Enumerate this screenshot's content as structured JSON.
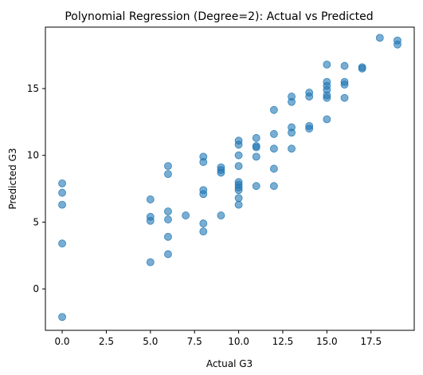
{
  "chart_data": {
    "type": "scatter",
    "title": "Polynomial Regression (Degree=2): Actual vs Predicted",
    "xlabel": "Actual G3",
    "ylabel": "Predicted G3",
    "xlim": [
      -0.95,
      19.95
    ],
    "ylim": [
      -3.1,
      19.6
    ],
    "xticks": [
      0.0,
      2.5,
      5.0,
      7.5,
      10.0,
      12.5,
      15.0,
      17.5
    ],
    "xtick_labels": [
      "0.0",
      "2.5",
      "5.0",
      "7.5",
      "10.0",
      "12.5",
      "15.0",
      "17.5"
    ],
    "yticks": [
      0,
      5,
      10,
      15
    ],
    "ytick_labels": [
      "0",
      "5",
      "10",
      "15"
    ],
    "grid": false,
    "marker_color": "#1f77b4",
    "marker_alpha": 0.6,
    "points": [
      [
        0,
        7.9
      ],
      [
        0,
        7.2
      ],
      [
        0,
        6.3
      ],
      [
        0,
        3.4
      ],
      [
        0,
        -2.1
      ],
      [
        5,
        6.7
      ],
      [
        5,
        5.4
      ],
      [
        5,
        5.1
      ],
      [
        5,
        2.0
      ],
      [
        6,
        9.2
      ],
      [
        6,
        8.6
      ],
      [
        6,
        5.8
      ],
      [
        6,
        5.2
      ],
      [
        6,
        3.9
      ],
      [
        6,
        2.6
      ],
      [
        7,
        5.5
      ],
      [
        8,
        9.9
      ],
      [
        8,
        9.5
      ],
      [
        8,
        7.4
      ],
      [
        8,
        7.1
      ],
      [
        8,
        4.9
      ],
      [
        8,
        4.3
      ],
      [
        9,
        9.1
      ],
      [
        9,
        8.9
      ],
      [
        9,
        8.7
      ],
      [
        9,
        5.5
      ],
      [
        10,
        11.1
      ],
      [
        10,
        10.8
      ],
      [
        10,
        10.0
      ],
      [
        10,
        9.2
      ],
      [
        10,
        8.0
      ],
      [
        10,
        7.8
      ],
      [
        10,
        7.6
      ],
      [
        10,
        7.4
      ],
      [
        10,
        6.8
      ],
      [
        10,
        6.3
      ],
      [
        11,
        11.3
      ],
      [
        11,
        10.7
      ],
      [
        11,
        10.6
      ],
      [
        11,
        9.9
      ],
      [
        11,
        7.7
      ],
      [
        12,
        13.4
      ],
      [
        12,
        11.6
      ],
      [
        12,
        10.5
      ],
      [
        12,
        9.0
      ],
      [
        12,
        7.7
      ],
      [
        13,
        14.4
      ],
      [
        13,
        14.0
      ],
      [
        13,
        12.1
      ],
      [
        13,
        11.7
      ],
      [
        13,
        10.5
      ],
      [
        14,
        14.7
      ],
      [
        14,
        14.4
      ],
      [
        14,
        12.2
      ],
      [
        14,
        12.0
      ],
      [
        15,
        16.8
      ],
      [
        15,
        15.5
      ],
      [
        15,
        15.2
      ],
      [
        15,
        14.9
      ],
      [
        15,
        14.5
      ],
      [
        15,
        14.3
      ],
      [
        15,
        12.7
      ],
      [
        16,
        16.7
      ],
      [
        16,
        15.5
      ],
      [
        16,
        15.3
      ],
      [
        16,
        14.3
      ],
      [
        17,
        16.6
      ],
      [
        17,
        16.5
      ],
      [
        18,
        18.8
      ],
      [
        19,
        18.6
      ],
      [
        19,
        18.3
      ]
    ]
  }
}
